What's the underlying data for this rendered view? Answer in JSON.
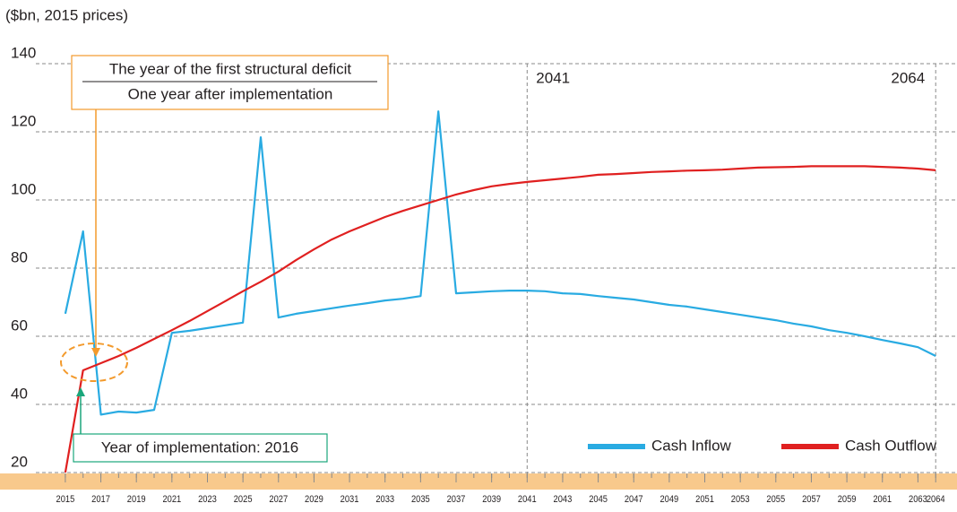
{
  "chart_data": {
    "type": "line",
    "subtitle": "($bn, 2015 prices)",
    "x": [
      2015,
      2016,
      2017,
      2018,
      2019,
      2020,
      2021,
      2022,
      2023,
      2024,
      2025,
      2026,
      2027,
      2028,
      2029,
      2030,
      2031,
      2032,
      2033,
      2034,
      2035,
      2036,
      2037,
      2038,
      2039,
      2040,
      2041,
      2042,
      2043,
      2044,
      2045,
      2046,
      2047,
      2048,
      2049,
      2050,
      2051,
      2052,
      2053,
      2054,
      2055,
      2056,
      2057,
      2058,
      2059,
      2060,
      2061,
      2062,
      2063,
      2064
    ],
    "series": [
      {
        "name": "Cash Inflow",
        "color": "#29abe2",
        "values": [
          66.6,
          90.8,
          37,
          37.9,
          37.6,
          38.4,
          61,
          61.6,
          62.4,
          63.2,
          64,
          118.4,
          65.5,
          66.6,
          67.4,
          68.2,
          69,
          69.7,
          70.5,
          71,
          71.8,
          126,
          72.6,
          72.9,
          73.2,
          73.4,
          73.4,
          73.2,
          72.6,
          72.4,
          71.8,
          71.3,
          70.8,
          70,
          69.2,
          68.7,
          67.9,
          67.1,
          66.3,
          65.5,
          64.7,
          63.7,
          62.9,
          61.8,
          61,
          60,
          58.9,
          57.9,
          56.8,
          54.2
        ]
      },
      {
        "name": "Cash Outflow",
        "color": "#e02020",
        "values": [
          20,
          50,
          52.1,
          54.2,
          56.6,
          59.2,
          61.8,
          64.5,
          67.4,
          70.3,
          73.2,
          76,
          79,
          82.4,
          85.5,
          88.4,
          90.8,
          92.9,
          95,
          96.8,
          98.4,
          100,
          101.6,
          102.9,
          104,
          104.7,
          105.3,
          105.8,
          106.3,
          106.8,
          107.4,
          107.6,
          107.9,
          108.2,
          108.4,
          108.6,
          108.7,
          108.9,
          109.2,
          109.5,
          109.6,
          109.7,
          109.9,
          109.9,
          109.9,
          109.9,
          109.7,
          109.5,
          109.2,
          108.7
        ]
      }
    ],
    "xlim": [
      2013.34,
      2065.2
    ],
    "xticks": [
      2015,
      2017,
      2019,
      2021,
      2023,
      2025,
      2027,
      2029,
      2031,
      2033,
      2035,
      2037,
      2039,
      2041,
      2043,
      2045,
      2047,
      2049,
      2051,
      2053,
      2055,
      2057,
      2059,
      2061,
      2063,
      2064
    ],
    "ylim": [
      20,
      140
    ],
    "yticks": [
      20,
      40,
      60,
      80,
      100,
      120,
      140
    ],
    "grid": true,
    "legend": "lower right",
    "vlines": [
      {
        "x": 2041,
        "label": "2041"
      },
      {
        "x": 2064,
        "label": "2064"
      }
    ],
    "annotations": [
      {
        "text": "The year of the first structural deficit"
      },
      {
        "text": "One year after implementation"
      },
      {
        "text": "Year of implementation: 2016"
      }
    ]
  }
}
